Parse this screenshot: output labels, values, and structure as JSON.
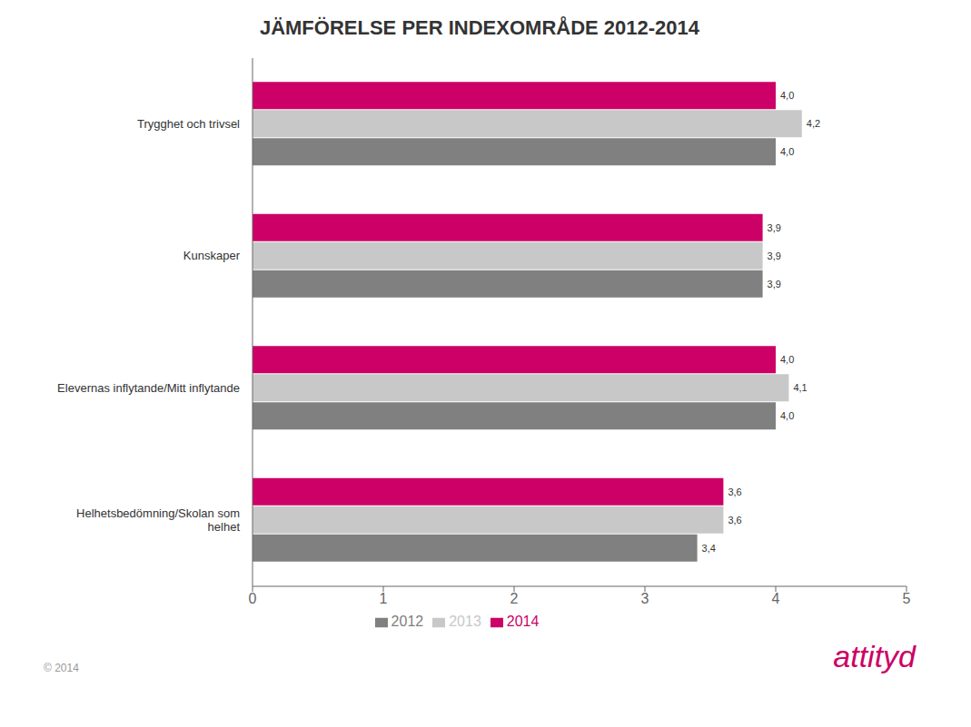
{
  "chart_data": {
    "type": "bar",
    "title": "JÄMFÖRELSE  PER  INDEXOMRÅDE  2012-2014",
    "orientation": "horizontal",
    "categories": [
      "Trygghet och trivsel",
      "Kunskaper",
      "Elevernas inflytande/Mitt inflytande",
      "Helhetsbedömning/Skolan som\nhelhet"
    ],
    "series": [
      {
        "name": "2014",
        "color": "#cc0066",
        "values": [
          4.0,
          3.9,
          4.0,
          3.6
        ],
        "value_labels": [
          "4,0",
          "3,9",
          "4,0",
          "3,6"
        ]
      },
      {
        "name": "2013",
        "color": "#c8c8c8",
        "values": [
          4.2,
          3.9,
          4.1,
          3.6
        ],
        "value_labels": [
          "4,2",
          "3,9",
          "4,1",
          "3,6"
        ]
      },
      {
        "name": "2012",
        "color": "#808080",
        "values": [
          4.0,
          3.9,
          4.0,
          3.4
        ],
        "value_labels": [
          "4,0",
          "3,9",
          "4,0",
          "3,4"
        ]
      }
    ],
    "xlim": [
      0,
      5
    ],
    "xticks": [
      0,
      1,
      2,
      3,
      4,
      5
    ],
    "data_labels": true,
    "grid": false,
    "legend": "bottom",
    "annotations": [
      "attityd",
      "© 2014"
    ]
  }
}
